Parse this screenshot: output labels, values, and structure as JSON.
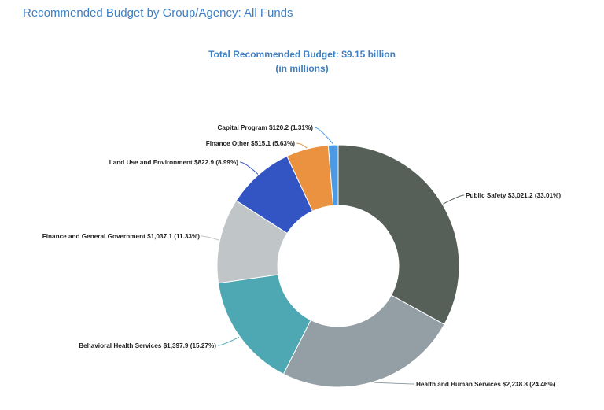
{
  "header": {
    "title": "Recommended Budget by Group/Agency: All Funds",
    "subtitle_line1": "Total Recommended Budget: $9.15 billion",
    "subtitle_line2": "(in millions)"
  },
  "chart_data": {
    "type": "pie",
    "variant": "donut",
    "title": "Total Recommended Budget: $9.15 billion",
    "subtitle": "(in millions)",
    "slices": [
      {
        "name": "Public Safety",
        "value": 3021.2,
        "percent": 33.01,
        "color": "#566059",
        "label": "Public Safety $3,021.2 (33.01%)"
      },
      {
        "name": "Health and Human Services",
        "value": 2238.8,
        "percent": 24.46,
        "color": "#949fa5",
        "label": "Health and Human Services $2,238.8 (24.46%)"
      },
      {
        "name": "Behavioral Health Services",
        "value": 1397.9,
        "percent": 15.27,
        "color": "#4ea8b3",
        "label": "Behavioral Health Services $1,397.9 (15.27%)"
      },
      {
        "name": "Finance and General Government",
        "value": 1037.1,
        "percent": 11.33,
        "color": "#c0c5c8",
        "label": "Finance and General Government $1,037.1 (11.33%)"
      },
      {
        "name": "Land Use and Environment",
        "value": 822.9,
        "percent": 8.99,
        "color": "#3355c4",
        "label": "Land Use and Environment $822.9 (8.99%)"
      },
      {
        "name": "Finance Other",
        "value": 515.1,
        "percent": 5.63,
        "color": "#ea9240",
        "label": "Finance Other $515.1 (5.63%)"
      },
      {
        "name": "Capital Program",
        "value": 120.2,
        "percent": 1.31,
        "color": "#4c9ae3",
        "label": "Capital Program $120.2 (1.31%)"
      }
    ]
  }
}
